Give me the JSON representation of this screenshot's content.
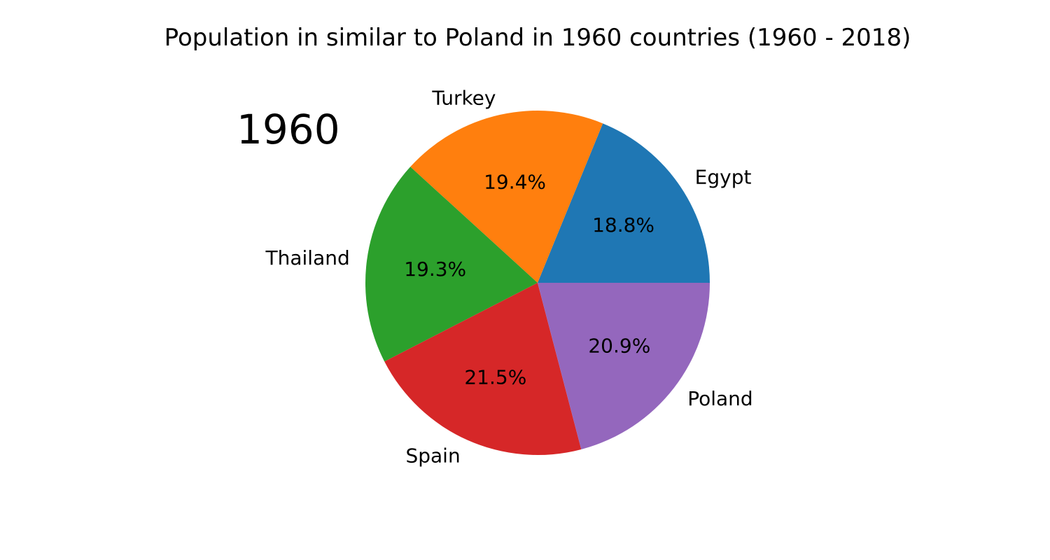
{
  "chart_data": {
    "type": "pie",
    "title": "Population in similar to Poland in 1960 countries (1960 - 2018)",
    "year": "1960",
    "slices": [
      {
        "label": "Egypt",
        "percent": 18.8,
        "percent_label": "18.8%",
        "color": "#1f77b4"
      },
      {
        "label": "Turkey",
        "percent": 19.4,
        "percent_label": "19.4%",
        "color": "#ff7f0e"
      },
      {
        "label": "Thailand",
        "percent": 19.3,
        "percent_label": "19.3%",
        "color": "#2ca02c"
      },
      {
        "label": "Spain",
        "percent": 21.5,
        "percent_label": "21.5%",
        "color": "#d62728"
      },
      {
        "label": "Poland",
        "percent": 20.9,
        "percent_label": "20.9%",
        "color": "#9467bd"
      }
    ],
    "start_angle_deg": 0,
    "direction": "counterclockwise"
  }
}
